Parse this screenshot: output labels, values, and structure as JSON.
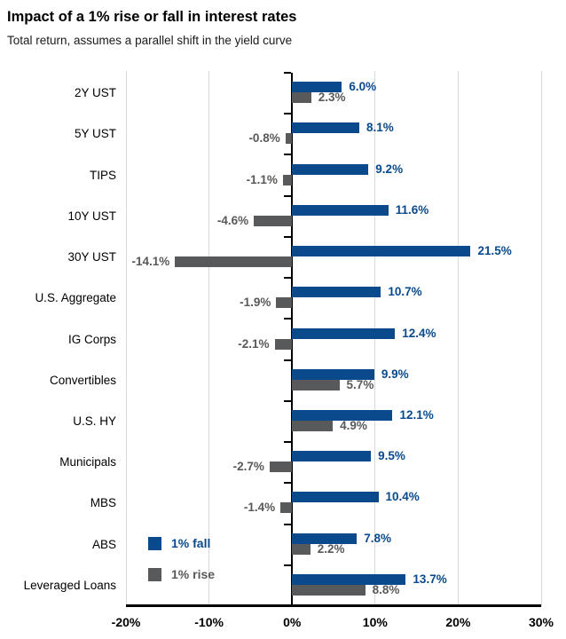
{
  "header": {
    "title": "Impact of a 1% rise or fall in interest rates",
    "subtitle": "Total return, assumes a parallel shift in the yield curve"
  },
  "colors": {
    "fall": "#0a4a8c",
    "rise": "#58595b",
    "grid": "#d9d9d9",
    "axis": "#000000"
  },
  "legend": {
    "fall_label": "1% fall",
    "rise_label": "1% rise"
  },
  "chart_data": {
    "type": "bar",
    "orientation": "horizontal",
    "title": "Impact of a 1% rise or fall in interest rates",
    "subtitle": "Total return, assumes a parallel shift in the yield curve",
    "categories": [
      "2Y UST",
      "5Y UST",
      "TIPS",
      "10Y UST",
      "30Y UST",
      "U.S. Aggregate",
      "IG Corps",
      "Convertibles",
      "U.S. HY",
      "Municipals",
      "MBS",
      "ABS",
      "Leveraged Loans"
    ],
    "series": [
      {
        "name": "1% fall",
        "color": "#0a4a8c",
        "values": [
          6.0,
          8.1,
          9.2,
          11.6,
          21.5,
          10.7,
          12.4,
          9.9,
          12.1,
          9.5,
          10.4,
          7.8,
          13.7
        ]
      },
      {
        "name": "1% rise",
        "color": "#58595b",
        "values": [
          2.3,
          -0.8,
          -1.1,
          -4.6,
          -14.1,
          -1.9,
          -2.1,
          5.7,
          4.9,
          -2.7,
          -1.4,
          2.2,
          8.8
        ]
      }
    ],
    "value_suffix": "%",
    "xlim": [
      -20,
      30
    ],
    "x_tick_values": [
      -20,
      -10,
      0,
      10,
      20,
      30
    ],
    "x_tick_labels": [
      "-20%",
      "-10%",
      "0%",
      "10%",
      "20%",
      "30%"
    ],
    "grid": true,
    "legend_position": "inside-bottom-left"
  }
}
